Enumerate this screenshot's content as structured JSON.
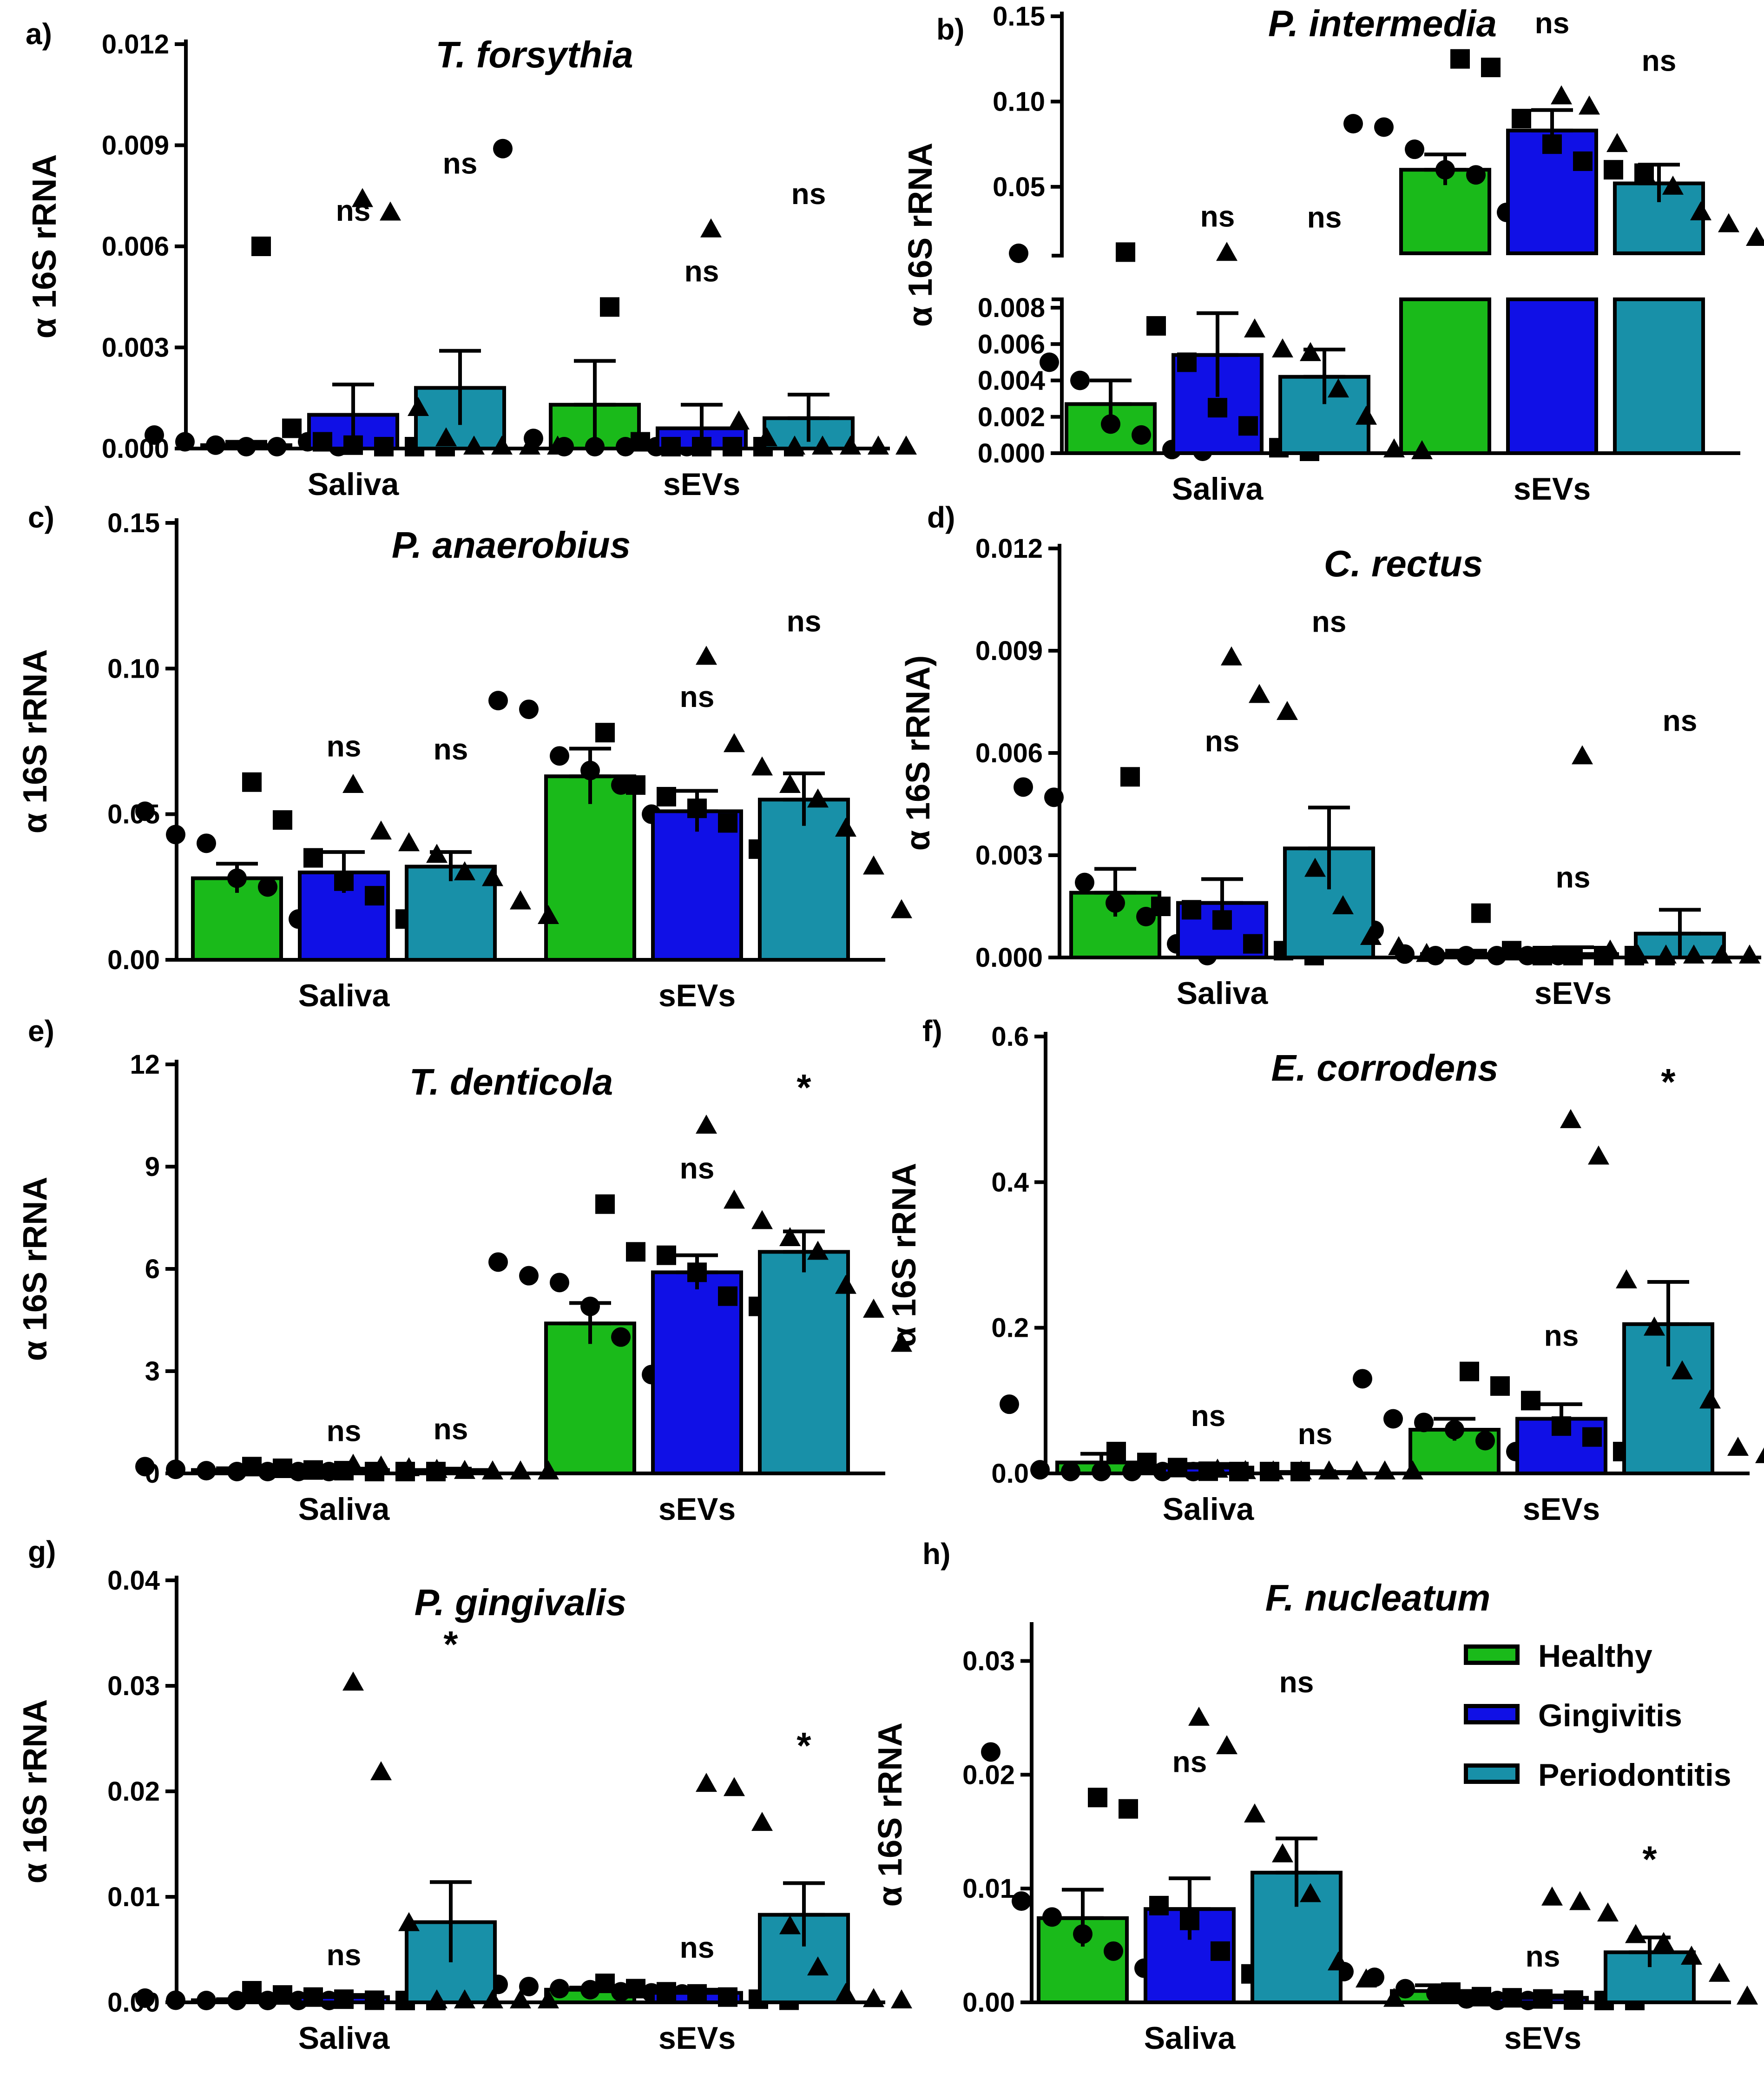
{
  "colors": {
    "Healthy": "#1aba1a",
    "Gingivitis": "#1010e6",
    "Periodontitis": "#1890a8"
  },
  "legend": {
    "placement": "inside panel h, top-right",
    "items": [
      {
        "label": "Healthy",
        "color": "#1aba1a"
      },
      {
        "label": "Gingivitis",
        "color": "#1010e6"
      },
      {
        "label": "Periodontitis",
        "color": "#1890a8"
      }
    ]
  },
  "chart_data": [
    {
      "panel": "a)",
      "type": "bar",
      "title": "T. forsythia",
      "ylabel": "α 16S rRNA",
      "categories": [
        "Saliva",
        "sEVs"
      ],
      "ylim": [
        0,
        0.012
      ],
      "yticks": [
        "0.000",
        "0.003",
        "0.006",
        "0.009",
        "0.012"
      ],
      "series": [
        {
          "name": "Healthy",
          "values": [
            0.0001,
            0.0013
          ],
          "sem": [
            0.0001,
            0.0013
          ],
          "marker": "circle",
          "points": [
            [
              0.0004,
              0.0002,
              0.0001,
              0.0,
              0.0,
              0.0002,
              0.0
            ],
            [
              0.0089,
              0.0003,
              0.0,
              0.0,
              0.0,
              0.0,
              0.0
            ]
          ],
          "sig": [
            "",
            ""
          ]
        },
        {
          "name": "Gingivitis",
          "values": [
            0.001,
            0.0006
          ],
          "sem": [
            0.0009,
            0.0007
          ],
          "marker": "square",
          "points": [
            [
              0.006,
              0.0006,
              0.0002,
              0.0001,
              0.0,
              0.0,
              0.0
            ],
            [
              0.0042,
              0.0002,
              0.0,
              0.0,
              0.0,
              0.0,
              0.0
            ]
          ],
          "sig": [
            "ns",
            "ns"
          ]
        },
        {
          "name": "Periodontitis",
          "values": [
            0.0018,
            0.0009
          ],
          "sem": [
            0.0011,
            0.0007
          ],
          "marker": "triangle",
          "points": [
            [
              0.0074,
              0.007,
              0.0012,
              0.0003,
              0.0,
              0.0,
              0.0,
              0.0
            ],
            [
              0.0065,
              0.0008,
              0.0003,
              0.0,
              0.0,
              0.0,
              0.0,
              0.0
            ]
          ],
          "sig": [
            "ns",
            "ns"
          ]
        }
      ]
    },
    {
      "panel": "b)",
      "type": "bar",
      "title": "P. intermedia",
      "ylabel": "α 16S rRNA",
      "categories": [
        "Saliva",
        "sEVs"
      ],
      "broken_axis": true,
      "lower_ylim": [
        0,
        0.008
      ],
      "lower_yticks": [
        "0.000",
        "0.002",
        "0.004",
        "0.006",
        "0.008"
      ],
      "upper_ylim": [
        0.011,
        0.15
      ],
      "upper_yticks": [
        "0.05",
        "0.10",
        "0.15"
      ],
      "series": [
        {
          "name": "Healthy",
          "values": [
            0.0027,
            0.06
          ],
          "sem": [
            0.0013,
            0.009
          ],
          "marker": "circle",
          "points": [
            [
              0.011,
              0.005,
              0.004,
              0.0016,
              0.001,
              0.0002,
              0.0
            ],
            [
              0.087,
              0.085,
              0.072,
              0.06,
              0.057,
              0.035,
              0.028
            ]
          ],
          "sig": [
            "",
            ""
          ]
        },
        {
          "name": "Gingivitis",
          "values": [
            0.0054,
            0.083
          ],
          "sem": [
            0.0023,
            0.012
          ],
          "marker": "square",
          "points": [
            [
              0.0117,
              0.007,
              0.005,
              0.0025,
              0.0015,
              0.0003,
              0.0
            ],
            [
              0.125,
              0.12,
              0.09,
              0.075,
              0.065,
              0.06,
              0.058
            ]
          ],
          "sig": [
            "ns",
            "ns"
          ]
        },
        {
          "name": "Periodontitis",
          "values": [
            0.0042,
            0.052
          ],
          "sem": [
            0.0015,
            0.011
          ],
          "marker": "triangle",
          "points": [
            [
              0.0112,
              0.0068,
              0.0057,
              0.0055,
              0.0035,
              0.002,
              0.0002,
              0.0
            ],
            [
              0.103,
              0.097,
              0.075,
              0.057,
              0.05,
              0.035,
              0.028,
              0.02
            ]
          ],
          "sig": [
            "ns",
            "ns"
          ]
        }
      ]
    },
    {
      "panel": "c)",
      "type": "bar",
      "title": "P. anaerobius",
      "ylabel": "α 16S rRNA",
      "categories": [
        "Saliva",
        "sEVs"
      ],
      "ylim": [
        0,
        0.15
      ],
      "yticks": [
        "0.00",
        "0.05",
        "0.10",
        "0.15"
      ],
      "series": [
        {
          "name": "Healthy",
          "values": [
            0.028,
            0.063
          ],
          "sem": [
            0.005,
            0.0095
          ],
          "marker": "circle",
          "points": [
            [
              0.051,
              0.043,
              0.04,
              0.028,
              0.025,
              0.014,
              0.008
            ],
            [
              0.089,
              0.086,
              0.07,
              0.065,
              0.06,
              0.05,
              0.016
            ]
          ],
          "sig": [
            "",
            ""
          ]
        },
        {
          "name": "Gingivitis",
          "values": [
            0.03,
            0.051
          ],
          "sem": [
            0.007,
            0.007
          ],
          "marker": "square",
          "points": [
            [
              0.061,
              0.048,
              0.035,
              0.027,
              0.022,
              0.014,
              0.01
            ],
            [
              0.078,
              0.06,
              0.056,
              0.052,
              0.047,
              0.038,
              0.027
            ]
          ],
          "sig": [
            "ns",
            "ns"
          ]
        },
        {
          "name": "Periodontitis",
          "values": [
            0.032,
            0.055
          ],
          "sem": [
            0.005,
            0.009
          ],
          "marker": "triangle",
          "points": [
            [
              0.06,
              0.044,
              0.04,
              0.036,
              0.03,
              0.028,
              0.02,
              0.015
            ],
            [
              0.104,
              0.074,
              0.066,
              0.06,
              0.055,
              0.045,
              0.032,
              0.017
            ]
          ],
          "sig": [
            "ns",
            "ns"
          ]
        }
      ]
    },
    {
      "panel": "d)",
      "type": "bar",
      "title": "C. rectus",
      "ylabel": "α 16S rRNA)",
      "categories": [
        "Saliva",
        "sEVs"
      ],
      "ylim": [
        0,
        0.012
      ],
      "yticks": [
        "0.000",
        "0.003",
        "0.006",
        "0.009",
        "0.012"
      ],
      "series": [
        {
          "name": "Healthy",
          "values": [
            0.0019,
            0.0001
          ],
          "sem": [
            0.0007,
            0.0001
          ],
          "marker": "circle",
          "points": [
            [
              0.005,
              0.0047,
              0.0022,
              0.0016,
              0.0012,
              0.0004,
              0.0
            ],
            [
              0.0008,
              0.0001,
              0.0,
              0.0,
              0.0,
              0.0,
              0.0
            ]
          ],
          "sig": [
            "",
            ""
          ]
        },
        {
          "name": "Gingivitis",
          "values": [
            0.0016,
            0.0001
          ],
          "sem": [
            0.0007,
            0.0002
          ],
          "marker": "square",
          "points": [
            [
              0.0053,
              0.0015,
              0.0014,
              0.0011,
              0.0004,
              0.0002,
              0.0
            ],
            [
              0.0013,
              0.0002,
              0.0,
              0.0,
              0.0,
              0.0,
              0.0
            ]
          ],
          "sig": [
            "ns",
            "ns"
          ]
        },
        {
          "name": "Periodontitis",
          "values": [
            0.0032,
            0.0007
          ],
          "sem": [
            0.0012,
            0.0007
          ],
          "marker": "triangle",
          "points": [
            [
              0.0088,
              0.0077,
              0.0072,
              0.0026,
              0.0015,
              0.0006,
              0.0003,
              0.0001
            ],
            [
              0.0059,
              0.0002,
              0.0,
              0.0,
              0.0,
              0.0,
              0.0,
              0.0
            ]
          ],
          "sig": [
            "ns",
            "ns"
          ]
        }
      ]
    },
    {
      "panel": "e)",
      "type": "bar",
      "title": "T. denticola",
      "ylabel": "α 16S rRNA",
      "categories": [
        "Saliva",
        "sEVs"
      ],
      "ylim": [
        0,
        12
      ],
      "yticks": [
        "0",
        "3",
        "6",
        "9",
        "12"
      ],
      "series": [
        {
          "name": "Healthy",
          "values": [
            0.1,
            4.4
          ],
          "sem": [
            0.05,
            0.6
          ],
          "marker": "circle",
          "points": [
            [
              0.2,
              0.12,
              0.08,
              0.05,
              0.02,
              0.01,
              0.0
            ],
            [
              6.2,
              5.8,
              5.6,
              4.9,
              4.0,
              2.9,
              1.6
            ]
          ],
          "sig": [
            "",
            ""
          ]
        },
        {
          "name": "Gingivitis",
          "values": [
            0.1,
            5.9
          ],
          "sem": [
            0.04,
            0.5
          ],
          "marker": "square",
          "points": [
            [
              0.2,
              0.15,
              0.1,
              0.08,
              0.05,
              0.02,
              0.0
            ],
            [
              7.9,
              6.5,
              6.4,
              5.9,
              5.2,
              4.9,
              4.3
            ]
          ],
          "sig": [
            "ns",
            "ns"
          ]
        },
        {
          "name": "Periodontitis",
          "values": [
            0.1,
            6.5
          ],
          "sem": [
            0.04,
            0.6
          ],
          "marker": "triangle",
          "points": [
            [
              0.25,
              0.2,
              0.15,
              0.1,
              0.07,
              0.05,
              0.02,
              0.0
            ],
            [
              10.2,
              8.0,
              7.4,
              6.9,
              6.5,
              5.5,
              4.8,
              3.8
            ]
          ],
          "sig": [
            "ns",
            "*"
          ]
        }
      ]
    },
    {
      "panel": "f)",
      "type": "bar",
      "title": "E. corrodens",
      "ylabel": "α 16S rRNA",
      "categories": [
        "Saliva",
        "sEVs"
      ],
      "ylim": [
        0,
        0.6
      ],
      "yticks": [
        "0.0",
        "0.2",
        "0.4",
        "0.6"
      ],
      "series": [
        {
          "name": "Healthy",
          "values": [
            0.015,
            0.06
          ],
          "sem": [
            0.012,
            0.015
          ],
          "marker": "circle",
          "points": [
            [
              0.095,
              0.005,
              0.002,
              0.0,
              0.0,
              0.0,
              0.0
            ],
            [
              0.13,
              0.075,
              0.07,
              0.06,
              0.045,
              0.03,
              0.02
            ]
          ],
          "sig": [
            "",
            ""
          ]
        },
        {
          "name": "Gingivitis",
          "values": [
            0.008,
            0.075
          ],
          "sem": [
            0.005,
            0.02
          ],
          "marker": "square",
          "points": [
            [
              0.03,
              0.015,
              0.008,
              0.003,
              0.0,
              0.0,
              0.0
            ],
            [
              0.14,
              0.12,
              0.1,
              0.065,
              0.05,
              0.03,
              0.015
            ]
          ],
          "sig": [
            "ns",
            "ns"
          ]
        },
        {
          "name": "Periodontitis",
          "values": [
            0.002,
            0.205
          ],
          "sem": [
            0.001,
            0.058
          ],
          "marker": "triangle",
          "points": [
            [
              0.005,
              0.003,
              0.002,
              0.001,
              0.0,
              0.0,
              0.0,
              0.0
            ],
            [
              0.485,
              0.435,
              0.265,
              0.2,
              0.14,
              0.1,
              0.035,
              0.025
            ]
          ],
          "sig": [
            "ns",
            "*"
          ]
        }
      ]
    },
    {
      "panel": "g)",
      "type": "bar",
      "title": "P. gingivalis",
      "ylabel": "α 16S rRNA",
      "categories": [
        "Saliva",
        "sEVs"
      ],
      "ylim": [
        0,
        0.04
      ],
      "yticks": [
        "0.00",
        "0.01",
        "0.02",
        "0.03",
        "0.04"
      ],
      "series": [
        {
          "name": "Healthy",
          "values": [
            0.0002,
            0.0012
          ],
          "sem": [
            0.0001,
            0.0002
          ],
          "marker": "circle",
          "points": [
            [
              0.0004,
              0.0002,
              0.0001,
              0.0,
              0.0,
              0.0,
              0.0
            ],
            [
              0.0017,
              0.0015,
              0.0013,
              0.0012,
              0.001,
              0.0009,
              0.0008
            ]
          ],
          "sig": [
            "",
            ""
          ]
        },
        {
          "name": "Gingivitis",
          "values": [
            0.0005,
            0.0009
          ],
          "sem": [
            0.0002,
            0.0003
          ],
          "marker": "square",
          "points": [
            [
              0.0011,
              0.0007,
              0.0005,
              0.0003,
              0.0002,
              0.0001,
              0.0
            ],
            [
              0.0018,
              0.0013,
              0.001,
              0.0008,
              0.0005,
              0.0003,
              0.0002
            ]
          ],
          "sig": [
            "ns",
            "ns"
          ]
        },
        {
          "name": "Periodontitis",
          "values": [
            0.0076,
            0.0083
          ],
          "sem": [
            0.0038,
            0.003
          ],
          "marker": "triangle",
          "points": [
            [
              0.0303,
              0.0218,
              0.0075,
              0.0,
              0.0,
              0.0,
              0.0,
              0.0
            ],
            [
              0.0207,
              0.0203,
              0.017,
              0.0072,
              0.0033,
              0.0008,
              0.0003,
              0.0001
            ]
          ],
          "sig": [
            "*",
            "*"
          ]
        }
      ]
    },
    {
      "panel": "h)",
      "type": "bar",
      "title": "F. nucleatum",
      "ylabel": "α 16S rRNA",
      "categories": [
        "Saliva",
        "sEVs"
      ],
      "ylim": [
        0,
        0.033
      ],
      "yticks": [
        "0.00",
        "0.01",
        "0.02",
        "0.03"
      ],
      "series": [
        {
          "name": "Healthy",
          "values": [
            0.0074,
            0.001
          ],
          "sem": [
            0.0025,
            0.0005
          ],
          "marker": "circle",
          "points": [
            [
              0.022,
              0.0089,
              0.0075,
              0.006,
              0.0045,
              0.003,
              0.0012
            ],
            [
              0.0027,
              0.0022,
              0.0012,
              0.0008,
              0.0003,
              0.0001,
              0.0
            ]
          ],
          "sig": [
            "",
            ""
          ]
        },
        {
          "name": "Gingivitis",
          "values": [
            0.0082,
            0.0004
          ],
          "sem": [
            0.0027,
            0.0002
          ],
          "marker": "square",
          "points": [
            [
              0.018,
              0.017,
              0.0085,
              0.0072,
              0.0045,
              0.0025,
              0.0015
            ],
            [
              0.0009,
              0.0005,
              0.0004,
              0.0003,
              0.0002,
              0.0001,
              0.0
            ]
          ],
          "sig": [
            "ns",
            "ns"
          ]
        },
        {
          "name": "Periodontitis",
          "values": [
            0.0114,
            0.0044
          ],
          "sem": [
            0.003,
            0.0013
          ],
          "marker": "triangle",
          "points": [
            [
              0.025,
              0.0225,
              0.0165,
              0.013,
              0.0095,
              0.0035,
              0.002,
              0.0003
            ],
            [
              0.0092,
              0.0088,
              0.0078,
              0.0059,
              0.0052,
              0.004,
              0.0025,
              0.0005
            ]
          ],
          "sig": [
            "ns",
            "*"
          ]
        }
      ]
    }
  ]
}
